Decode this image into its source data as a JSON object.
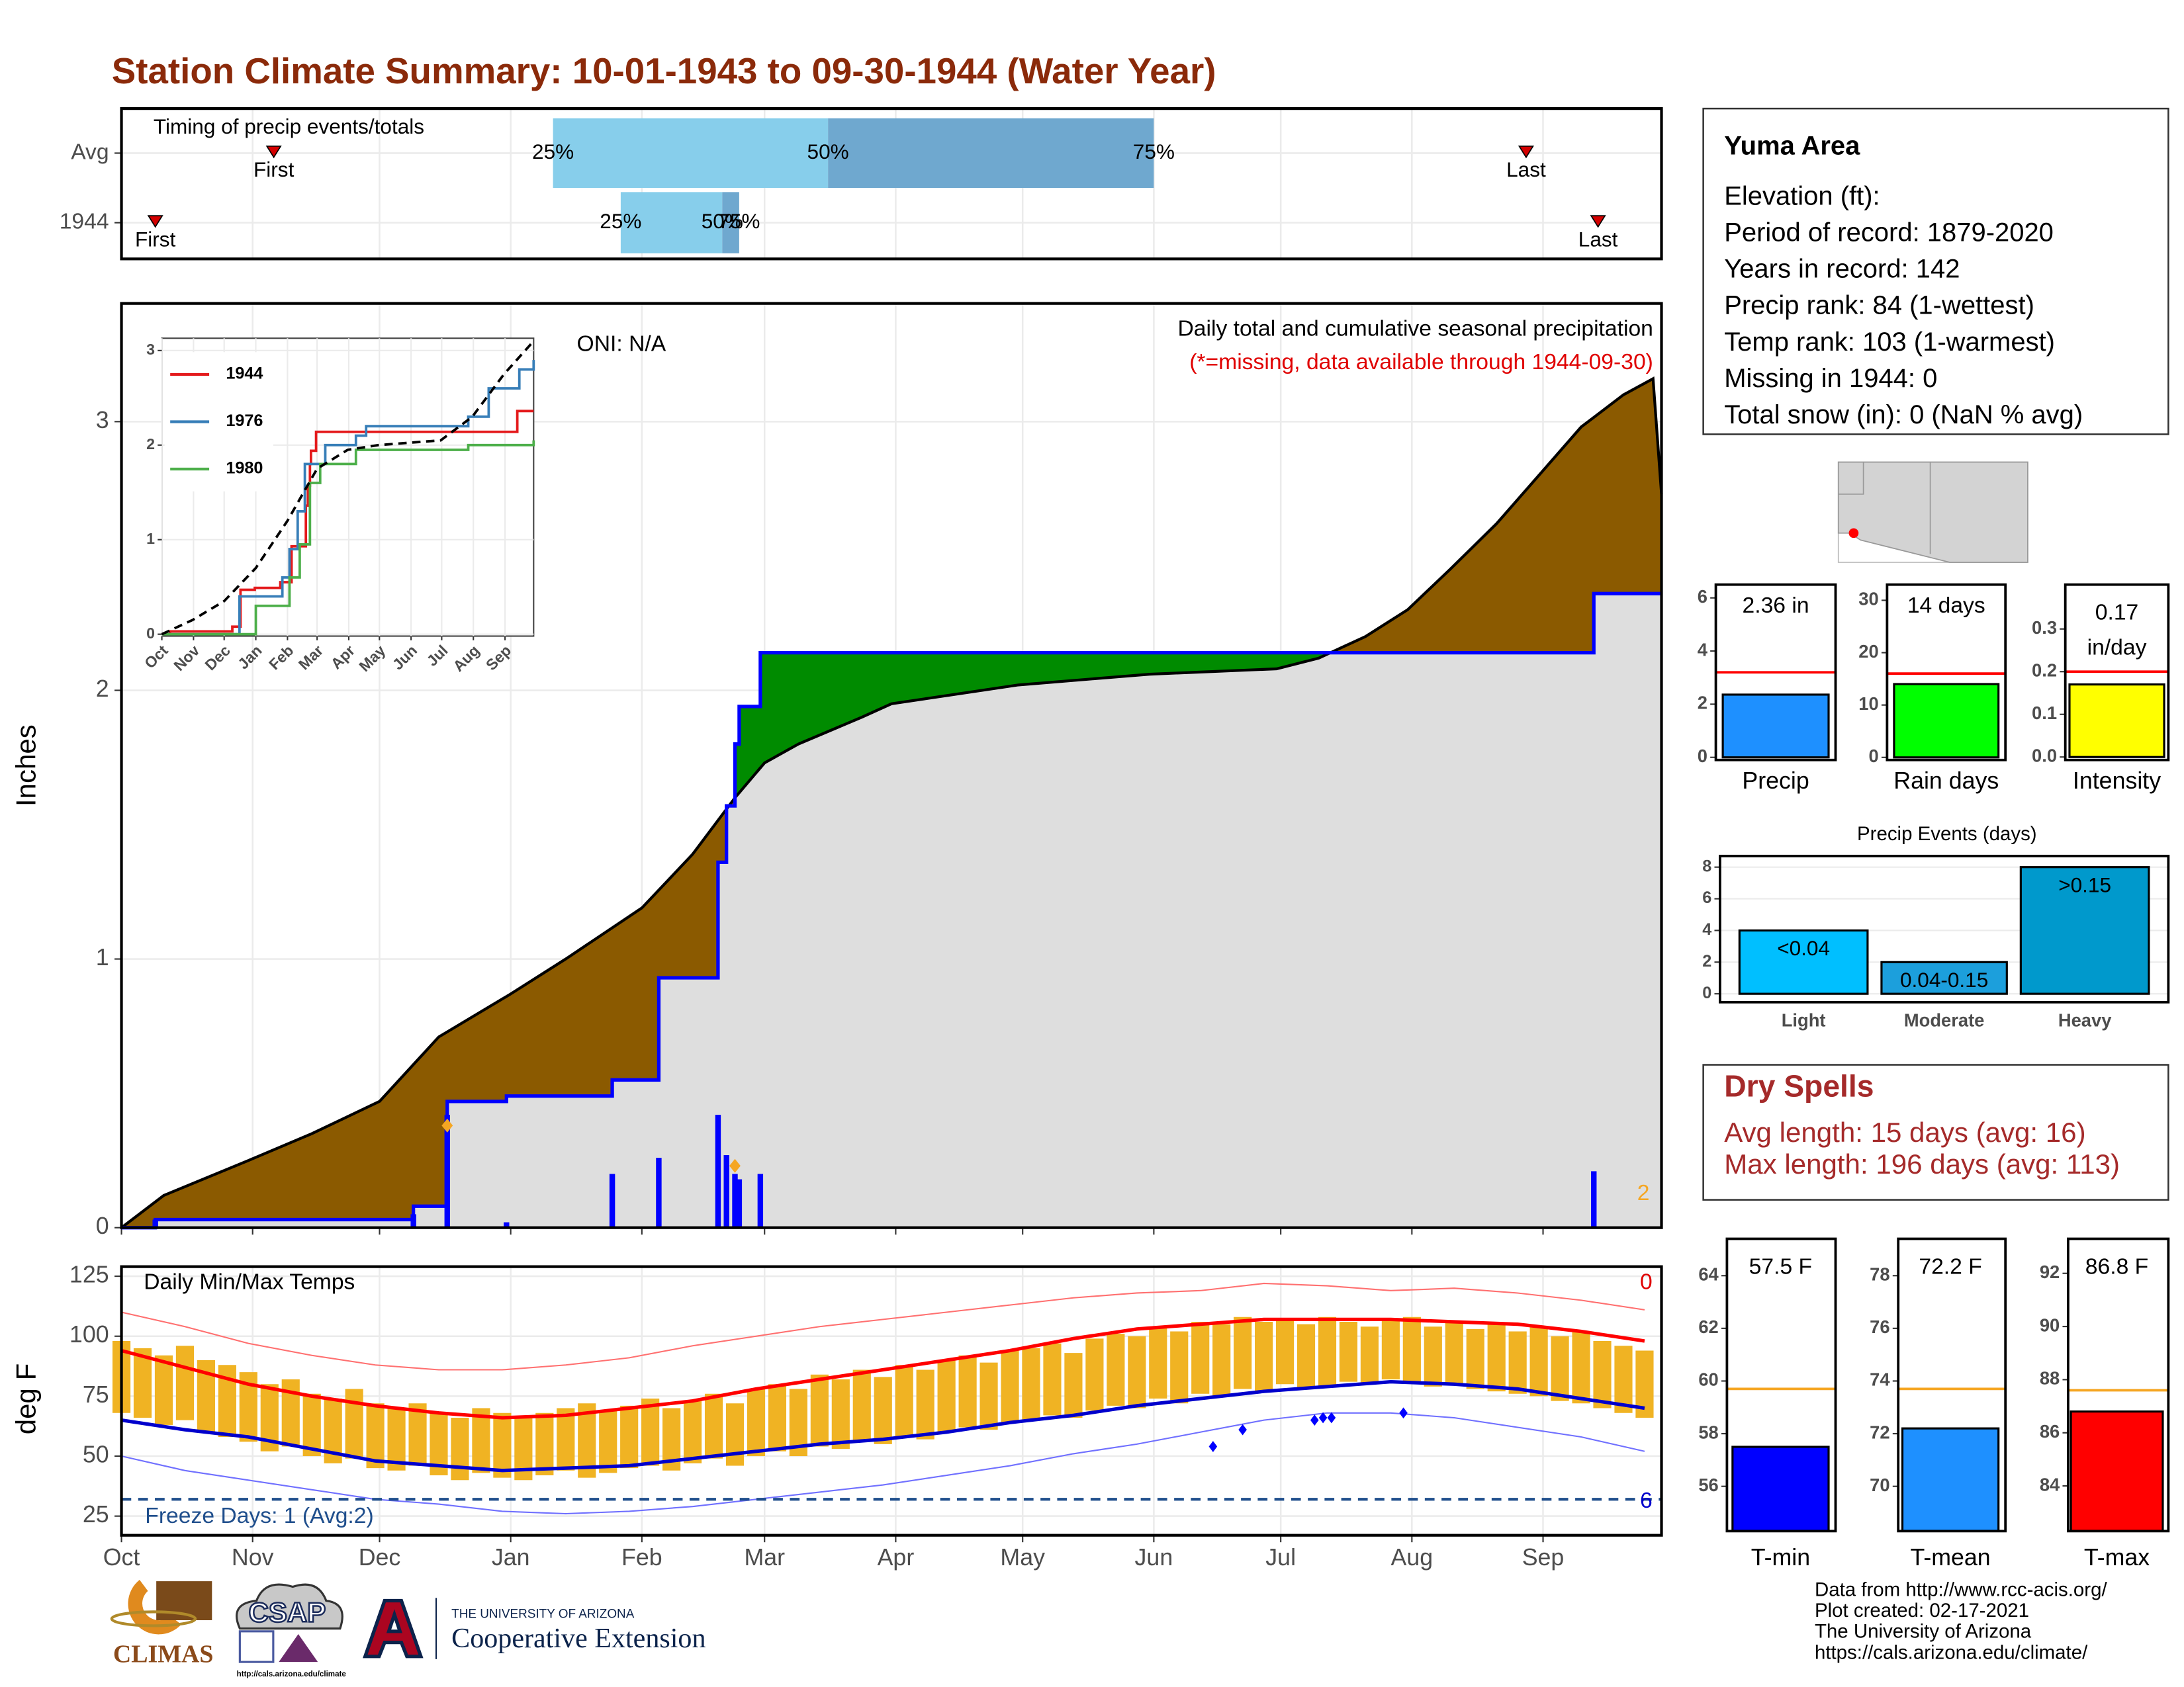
{
  "title": "Station Climate Summary: 10-01-1943 to 09-30-1944 (Water Year)",
  "info": {
    "station": "Yuma Area",
    "lines": [
      "Elevation (ft):",
      "Period of record: 1879-2020",
      "Years in record: 142",
      "Precip rank: 84 (1-wettest)",
      "Temp rank: 103 (1-warmest)",
      "Missing in 1944: 0",
      "Total snow (in): 0 (NaN % avg)"
    ]
  },
  "dry_spells": {
    "title": "Dry Spells",
    "lines": [
      "Avg length: 15 days (avg: 16)",
      "Max length: 196 days (avg: 113)"
    ]
  },
  "footer": [
    "Data from http://www.rcc-acis.org/",
    "Plot created: 02-17-2021",
    "The University of Arizona",
    "https://cals.arizona.edu/climate/"
  ],
  "logos": {
    "climas": "CLIMAS",
    "csap": "CSAP",
    "csap_url": "http://cals.arizona.edu/climate",
    "ua_small": "THE UNIVERSITY OF ARIZONA",
    "ua_big": "Cooperative Extension"
  },
  "chart_data": [
    {
      "type": "timing",
      "title": "Timing of precip events/totals",
      "categories": [
        "Avg",
        "1944"
      ],
      "xlim": [
        0,
        364
      ],
      "first": [
        36,
        8
      ],
      "p25": [
        102,
        118
      ],
      "p50": [
        167,
        142
      ],
      "p75": [
        244,
        146
      ],
      "last": [
        332,
        349
      ],
      "labels": {
        "first": "First",
        "last": "Last",
        "p25": "25%",
        "p50": "50%",
        "p75": "75%"
      },
      "colors": {
        "low": "#87ceeb",
        "high": "#6fa8cf",
        "marker": "#d40000"
      }
    },
    {
      "type": "cumulative",
      "y_label": "Inches",
      "oni": "ONI: N/A",
      "subtitle": "Daily total and cumulative seasonal precipitation",
      "note": "(*=missing, data available through 1944-09-30)",
      "xlim": [
        0,
        364
      ],
      "ylim": [
        0,
        3.44
      ],
      "yticks": [
        0,
        1,
        2,
        3
      ],
      "avg": {
        "x": [
          0,
          10,
          30,
          45,
          61,
          75,
          92,
          105,
          123,
          135,
          145,
          152,
          160,
          175,
          182,
          212,
          243,
          273,
          283,
          294,
          304,
          314,
          325,
          335,
          345,
          355,
          362,
          364
        ],
        "values": [
          0,
          0.12,
          0.25,
          0.35,
          0.47,
          0.71,
          0.87,
          1.0,
          1.19,
          1.39,
          1.6,
          1.73,
          1.8,
          1.9,
          1.95,
          2.02,
          2.06,
          2.08,
          2.12,
          2.2,
          2.3,
          2.45,
          2.62,
          2.8,
          2.98,
          3.1,
          3.16,
          2.73
        ]
      },
      "cumulative": {
        "color": "#0000ff",
        "x": [
          0,
          8,
          69,
          77,
          91,
          116,
          127,
          141,
          143,
          145,
          146,
          151,
          348
        ],
        "values": [
          0,
          0.03,
          0.08,
          0.47,
          0.49,
          0.55,
          0.93,
          1.36,
          1.57,
          1.8,
          1.94,
          2.14,
          2.36
        ]
      },
      "daily": {
        "color": "#0000ff",
        "x": [
          8,
          69,
          77,
          91,
          116,
          127,
          141,
          143,
          145,
          146,
          151,
          348
        ],
        "values": [
          0.03,
          0.05,
          0.42,
          0.02,
          0.2,
          0.26,
          0.42,
          0.27,
          0.2,
          0.18,
          0.2,
          0.21
        ]
      },
      "missing": {
        "color": "#f5a623",
        "x": [
          77,
          145
        ],
        "values": [
          0.38,
          0.23
        ]
      },
      "missing_count": 2,
      "fill_colors": {
        "below": "#8b5a00",
        "above": "#008b00",
        "base": "#dedede"
      }
    },
    {
      "type": "inset-lines",
      "xlim": [
        0,
        364
      ],
      "ylim": [
        -0.02,
        3.13
      ],
      "yticks": [
        0,
        1,
        2,
        3
      ],
      "xticks": [
        {
          "value": 0,
          "label": "Oct"
        },
        {
          "value": 31,
          "label": "Nov"
        },
        {
          "value": 61,
          "label": "Dec"
        },
        {
          "value": 92,
          "label": "Jan"
        },
        {
          "value": 123,
          "label": "Feb"
        },
        {
          "value": 152,
          "label": "Mar"
        },
        {
          "value": 183,
          "label": "Apr"
        },
        {
          "value": 213,
          "label": "May"
        },
        {
          "value": 244,
          "label": "Jun"
        },
        {
          "value": 274,
          "label": "Jul"
        },
        {
          "value": 305,
          "label": "Aug"
        },
        {
          "value": 336,
          "label": "Sep"
        }
      ],
      "series": [
        {
          "name": "1944",
          "color": "#e41a1c",
          "x": [
            0,
            8,
            69,
            77,
            91,
            116,
            127,
            141,
            143,
            145,
            146,
            151,
            348,
            364
          ],
          "values": [
            0,
            0.03,
            0.08,
            0.47,
            0.49,
            0.55,
            0.93,
            1.36,
            1.57,
            1.8,
            1.94,
            2.14,
            2.36,
            2.36
          ]
        },
        {
          "name": "1976",
          "color": "#377eb8",
          "x": [
            0,
            76,
            118,
            125,
            133,
            140,
            160,
            190,
            200,
            300,
            320,
            350,
            364
          ],
          "values": [
            0,
            0.4,
            0.6,
            0.9,
            1.3,
            1.8,
            2.0,
            2.1,
            2.2,
            2.3,
            2.6,
            2.8,
            2.9
          ]
        },
        {
          "name": "1980",
          "color": "#4daf4a",
          "x": [
            0,
            92,
            125,
            135,
            145,
            155,
            182,
            190,
            300,
            364
          ],
          "values": [
            0,
            0.3,
            0.6,
            0.95,
            1.6,
            1.8,
            1.8,
            1.95,
            2.0,
            2.05
          ]
        }
      ],
      "avg": {
        "x": [
          0,
          30,
          61,
          92,
          123,
          152,
          182,
          212,
          273,
          304,
          335,
          364
        ],
        "values": [
          0,
          0.15,
          0.35,
          0.7,
          1.2,
          1.75,
          1.95,
          2.0,
          2.05,
          2.3,
          2.75,
          3.1
        ]
      }
    },
    {
      "type": "range-bar",
      "title": "Daily Min/Max Temps",
      "y_label": "deg F",
      "xlim": [
        0,
        364
      ],
      "ylim": [
        17,
        129
      ],
      "yticks": [
        25,
        50,
        75,
        100,
        125
      ],
      "xticks": [
        {
          "value": 0,
          "label": "Oct"
        },
        {
          "value": 31,
          "label": "Nov"
        },
        {
          "value": 61,
          "label": "Dec"
        },
        {
          "value": 92,
          "label": "Jan"
        },
        {
          "value": 123,
          "label": "Feb"
        },
        {
          "value": 152,
          "label": "Mar"
        },
        {
          "value": 183,
          "label": "Apr"
        },
        {
          "value": 213,
          "label": "May"
        },
        {
          "value": 244,
          "label": "Jun"
        },
        {
          "value": 274,
          "label": "Jul"
        },
        {
          "value": 305,
          "label": "Aug"
        },
        {
          "value": 336,
          "label": "Sep"
        }
      ],
      "color": "#f0b323",
      "x": [
        0,
        5,
        10,
        15,
        20,
        25,
        30,
        35,
        40,
        45,
        50,
        55,
        60,
        65,
        70,
        75,
        80,
        85,
        90,
        95,
        100,
        105,
        110,
        115,
        120,
        125,
        130,
        135,
        140,
        145,
        150,
        155,
        160,
        165,
        170,
        175,
        180,
        185,
        190,
        195,
        200,
        205,
        210,
        215,
        220,
        225,
        230,
        235,
        240,
        245,
        250,
        255,
        260,
        265,
        270,
        275,
        280,
        285,
        290,
        295,
        300,
        305,
        310,
        315,
        320,
        325,
        330,
        335,
        340,
        345,
        350,
        355,
        360
      ],
      "tmax": [
        98,
        95,
        92,
        96,
        90,
        88,
        85,
        80,
        82,
        76,
        74,
        78,
        72,
        70,
        72,
        68,
        66,
        70,
        68,
        66,
        68,
        70,
        72,
        69,
        71,
        74,
        70,
        73,
        76,
        72,
        78,
        80,
        78,
        84,
        82,
        86,
        83,
        88,
        86,
        90,
        92,
        89,
        94,
        95,
        97,
        93,
        99,
        101,
        100,
        104,
        102,
        106,
        105,
        108,
        106,
        107,
        105,
        108,
        106,
        104,
        107,
        108,
        104,
        106,
        103,
        105,
        102,
        104,
        100,
        102,
        98,
        96,
        94
      ],
      "tmin": [
        68,
        66,
        63,
        65,
        60,
        58,
        56,
        52,
        54,
        50,
        47,
        49,
        45,
        44,
        46,
        42,
        40,
        43,
        41,
        40,
        42,
        44,
        41,
        43,
        45,
        46,
        44,
        47,
        49,
        46,
        50,
        52,
        50,
        54,
        53,
        56,
        55,
        58,
        57,
        60,
        62,
        61,
        64,
        65,
        67,
        66,
        69,
        71,
        70,
        74,
        72,
        76,
        75,
        78,
        77,
        80,
        78,
        79,
        81,
        80,
        82,
        81,
        79,
        80,
        78,
        77,
        76,
        75,
        73,
        72,
        70,
        68,
        66
      ],
      "norm_x": [
        0,
        15,
        30,
        45,
        60,
        75,
        90,
        105,
        120,
        135,
        150,
        165,
        180,
        195,
        210,
        225,
        240,
        255,
        270,
        285,
        300,
        315,
        330,
        345,
        360
      ],
      "normal_max": [
        94,
        87,
        80,
        75,
        71,
        68,
        66,
        67,
        70,
        73,
        78,
        82,
        86,
        90,
        94,
        99,
        103,
        105,
        107,
        107,
        107,
        106,
        105,
        102,
        98
      ],
      "normal_min": [
        65,
        61,
        58,
        53,
        48,
        46,
        44,
        45,
        46,
        49,
        52,
        55,
        57,
        60,
        64,
        67,
        71,
        74,
        77,
        79,
        81,
        80,
        78,
        74,
        70
      ],
      "record_max": [
        110,
        104,
        97,
        92,
        88,
        86,
        86,
        88,
        91,
        96,
        100,
        104,
        107,
        110,
        113,
        116,
        118,
        119,
        122,
        121,
        119,
        120,
        118,
        115,
        111
      ],
      "record_min": [
        50,
        44,
        40,
        36,
        32,
        30,
        27,
        26,
        27,
        29,
        32,
        35,
        38,
        42,
        46,
        51,
        55,
        60,
        65,
        68,
        68,
        66,
        62,
        58,
        52
      ],
      "line_colors": {
        "normal_max": "#ff0000",
        "normal_min": "#0000cc",
        "record_max": "#ff7070",
        "record_min": "#7070ff",
        "freeze": "#1f4e8c"
      },
      "record_low_x": [
        258,
        265,
        282,
        284,
        286,
        303
      ],
      "record_low_values": [
        54,
        61,
        65,
        66,
        66,
        68
      ],
      "freeze_line": 32,
      "freeze_label": "Freeze Days: 1 (Avg:2)",
      "record_high_count": 0,
      "record_low_count": 6
    },
    {
      "type": "bar",
      "categories": [
        "Precip"
      ],
      "values": [
        2.36
      ],
      "value_labels": [
        "2.36 in"
      ],
      "reference": 3.2,
      "color": "#1e90ff",
      "ylim": [
        -0.1,
        6.5
      ],
      "yticks": [
        0,
        2,
        4,
        6
      ]
    },
    {
      "type": "bar",
      "categories": [
        "Rain days"
      ],
      "values": [
        14
      ],
      "value_labels": [
        "14 days"
      ],
      "reference": 16,
      "color": "#00ff00",
      "ylim": [
        -0.5,
        33
      ],
      "yticks": [
        0,
        10,
        20,
        30
      ]
    },
    {
      "type": "bar",
      "categories": [
        "Intensity"
      ],
      "values": [
        0.17
      ],
      "value_labels": [
        "0.17"
      ],
      "unit_label": "in/day",
      "reference": 0.2,
      "color": "#ffff00",
      "ylim": [
        -0.007,
        0.404
      ],
      "yticks": [
        {
          "value": 0,
          "label": "0.0"
        },
        0.1,
        0.2,
        0.3
      ]
    },
    {
      "type": "bar",
      "title": "Precip Events (days)",
      "categories": [
        "Light",
        "Moderate",
        "Heavy"
      ],
      "values": [
        4,
        2,
        8
      ],
      "bin_labels": [
        "<0.04",
        "0.04-0.15",
        ">0.15"
      ],
      "colors": [
        "#00bfff",
        "#1c9fdc",
        "#0099cc"
      ],
      "ylim": [
        -0.53,
        8.7
      ],
      "yticks": [
        0,
        2,
        4,
        6,
        8
      ]
    },
    {
      "type": "bar",
      "categories": [
        "T-min"
      ],
      "values": [
        57.5
      ],
      "value_labels": [
        "57.5 F"
      ],
      "reference": 59.7,
      "color": "#0000ff",
      "ylim": [
        54.3,
        65.4
      ],
      "yticks": [
        56,
        58,
        60,
        62,
        64
      ]
    },
    {
      "type": "bar",
      "categories": [
        "T-mean"
      ],
      "values": [
        72.2
      ],
      "value_labels": [
        "72.2 F"
      ],
      "reference": 73.7,
      "color": "#1e90ff",
      "ylim": [
        68.3,
        79.4
      ],
      "yticks": [
        70,
        72,
        74,
        76,
        78
      ]
    },
    {
      "type": "bar",
      "categories": [
        "T-max"
      ],
      "values": [
        86.8
      ],
      "value_labels": [
        "86.8 F"
      ],
      "reference": 87.6,
      "color": "#ff0000",
      "ylim": [
        82.3,
        93.3
      ],
      "yticks": [
        84,
        86,
        88,
        90,
        92
      ]
    }
  ]
}
